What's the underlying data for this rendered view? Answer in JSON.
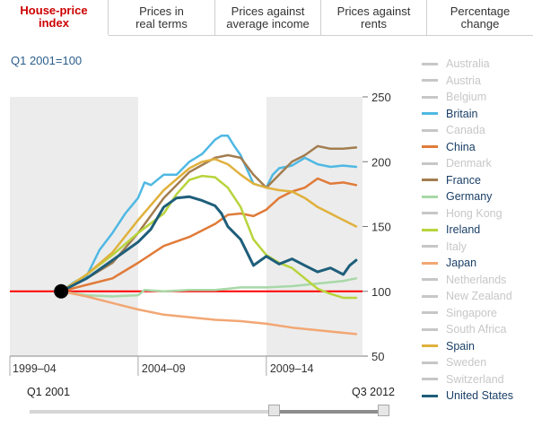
{
  "tabs": [
    {
      "label": "House-price\nindex",
      "active": true
    },
    {
      "label": "Prices in\nreal terms",
      "active": false
    },
    {
      "label": "Prices against\naverage income",
      "active": false
    },
    {
      "label": "Prices against\nrents",
      "active": false
    },
    {
      "label": "Percentage\nchange",
      "active": false
    }
  ],
  "subtitle": "Q1 2001=100",
  "slider": {
    "start_label": "Q1 2001",
    "end_label": "Q3 2012",
    "range_start": 0.68,
    "range_end": 1.0
  },
  "colors": {
    "baseline": "#ff0000",
    "bands": "#ececec",
    "inactive_legend": "#c7c7c7"
  },
  "chart_data": {
    "type": "line",
    "ylim": [
      50,
      250
    ],
    "yticks": [
      50,
      100,
      150,
      200,
      250
    ],
    "xlim": [
      1999.0,
      2012.75
    ],
    "period_labels": [
      "1999–04",
      "2004–09",
      "2009–14"
    ],
    "baseline": 100,
    "origin_point": {
      "x": 2001.0,
      "y": 100
    },
    "series": [
      {
        "name": "Australia",
        "active": false,
        "color": "#c7c7c7",
        "x": [],
        "y": []
      },
      {
        "name": "Austria",
        "active": false,
        "color": "#c7c7c7",
        "x": [],
        "y": []
      },
      {
        "name": "Belgium",
        "active": false,
        "color": "#c7c7c7",
        "x": [],
        "y": []
      },
      {
        "name": "Britain",
        "active": true,
        "color": "#4fb8e3",
        "x": [
          2001.0,
          2001.5,
          2002.0,
          2002.5,
          2003.0,
          2003.5,
          2004.0,
          2004.25,
          2004.5,
          2005.0,
          2005.5,
          2006.0,
          2006.5,
          2007.0,
          2007.25,
          2007.5,
          2007.75,
          2008.0,
          2008.5,
          2009.0,
          2009.25,
          2009.5,
          2010.0,
          2010.5,
          2011.0,
          2011.5,
          2012.0,
          2012.5
        ],
        "y": [
          100,
          107,
          112,
          132,
          145,
          160,
          172,
          184,
          182,
          190,
          190,
          200,
          206,
          217,
          220,
          220,
          212,
          205,
          183,
          180,
          190,
          195,
          197,
          203,
          198,
          196,
          197,
          196
        ]
      },
      {
        "name": "Canada",
        "active": false,
        "color": "#c7c7c7",
        "x": [],
        "y": []
      },
      {
        "name": "China",
        "active": true,
        "color": "#e07b39",
        "x": [
          2001.0,
          2002.0,
          2003.0,
          2004.0,
          2005.0,
          2006.0,
          2007.0,
          2007.5,
          2008.0,
          2008.5,
          2009.0,
          2009.5,
          2010.0,
          2010.5,
          2011.0,
          2011.5,
          2012.0,
          2012.5
        ],
        "y": [
          100,
          105,
          110,
          122,
          135,
          142,
          152,
          159,
          160,
          158,
          163,
          172,
          177,
          180,
          187,
          183,
          184,
          182
        ]
      },
      {
        "name": "Denmark",
        "active": false,
        "color": "#c7c7c7",
        "x": [],
        "y": []
      },
      {
        "name": "France",
        "active": true,
        "color": "#a27d4f",
        "x": [
          2001.0,
          2002.0,
          2003.0,
          2004.0,
          2005.0,
          2006.0,
          2007.0,
          2007.5,
          2008.0,
          2008.5,
          2009.0,
          2009.5,
          2010.0,
          2010.5,
          2011.0,
          2011.5,
          2012.0,
          2012.5
        ],
        "y": [
          100,
          110,
          122,
          145,
          172,
          192,
          203,
          205,
          203,
          190,
          180,
          190,
          200,
          205,
          212,
          210,
          210,
          211
        ]
      },
      {
        "name": "Germany",
        "active": true,
        "color": "#a8d8a8",
        "x": [
          2001.0,
          2002.0,
          2003.0,
          2004.0,
          2004.25,
          2005.0,
          2006.0,
          2007.0,
          2008.0,
          2009.0,
          2010.0,
          2011.0,
          2012.0,
          2012.5
        ],
        "y": [
          100,
          97,
          96,
          97,
          101,
          100,
          101,
          101,
          103,
          103,
          104,
          106,
          108,
          110
        ]
      },
      {
        "name": "Hong Kong",
        "active": false,
        "color": "#c7c7c7",
        "x": [],
        "y": []
      },
      {
        "name": "Ireland",
        "active": true,
        "color": "#b8d43c",
        "x": [
          2001.0,
          2002.0,
          2003.0,
          2004.0,
          2005.0,
          2005.5,
          2006.0,
          2006.5,
          2007.0,
          2007.5,
          2008.0,
          2008.5,
          2009.0,
          2009.5,
          2010.0,
          2010.5,
          2011.0,
          2011.5,
          2012.0,
          2012.5
        ],
        "y": [
          100,
          113,
          128,
          145,
          160,
          175,
          186,
          189,
          188,
          180,
          165,
          140,
          128,
          122,
          118,
          110,
          102,
          98,
          95,
          95
        ]
      },
      {
        "name": "Italy",
        "active": false,
        "color": "#c7c7c7",
        "x": [],
        "y": []
      },
      {
        "name": "Japan",
        "active": true,
        "color": "#f2a774",
        "x": [
          2001.0,
          2002.0,
          2003.0,
          2004.0,
          2005.0,
          2006.0,
          2007.0,
          2008.0,
          2009.0,
          2010.0,
          2011.0,
          2012.0,
          2012.5
        ],
        "y": [
          100,
          96,
          91,
          86,
          82,
          80,
          78,
          77,
          75,
          72,
          70,
          68,
          67
        ]
      },
      {
        "name": "Netherlands",
        "active": false,
        "color": "#c7c7c7",
        "x": [],
        "y": []
      },
      {
        "name": "New Zealand",
        "active": false,
        "color": "#c7c7c7",
        "x": [],
        "y": []
      },
      {
        "name": "Singapore",
        "active": false,
        "color": "#c7c7c7",
        "x": [],
        "y": []
      },
      {
        "name": "South Africa",
        "active": false,
        "color": "#c7c7c7",
        "x": [],
        "y": []
      },
      {
        "name": "Spain",
        "active": true,
        "color": "#e0b13c",
        "x": [
          2001.0,
          2002.0,
          2003.0,
          2004.0,
          2005.0,
          2006.0,
          2006.5,
          2007.0,
          2007.5,
          2008.0,
          2008.5,
          2009.0,
          2009.5,
          2010.0,
          2010.5,
          2011.0,
          2011.5,
          2012.0,
          2012.5
        ],
        "y": [
          100,
          113,
          130,
          155,
          178,
          195,
          200,
          202,
          198,
          190,
          183,
          180,
          178,
          177,
          172,
          165,
          160,
          155,
          150
        ]
      },
      {
        "name": "Sweden",
        "active": false,
        "color": "#c7c7c7",
        "x": [],
        "y": []
      },
      {
        "name": "Switzerland",
        "active": false,
        "color": "#c7c7c7",
        "x": [],
        "y": []
      },
      {
        "name": "United States",
        "active": true,
        "color": "#1e5e7a",
        "x": [
          2001.0,
          2002.0,
          2003.0,
          2004.0,
          2004.5,
          2005.0,
          2005.5,
          2006.0,
          2006.5,
          2007.0,
          2007.25,
          2007.5,
          2008.0,
          2008.5,
          2009.0,
          2009.5,
          2010.0,
          2010.5,
          2011.0,
          2011.5,
          2012.0,
          2012.25,
          2012.5
        ],
        "y": [
          100,
          110,
          124,
          138,
          148,
          165,
          172,
          173,
          170,
          166,
          160,
          150,
          140,
          120,
          127,
          121,
          125,
          120,
          115,
          118,
          113,
          120,
          124
        ]
      }
    ]
  }
}
